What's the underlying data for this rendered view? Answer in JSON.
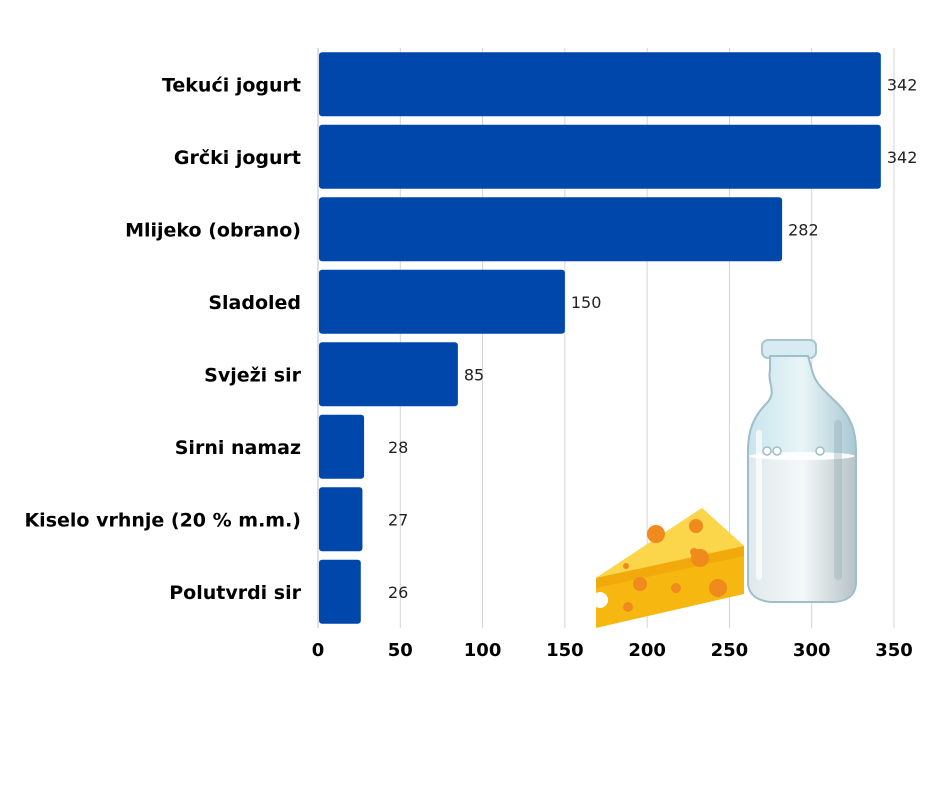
{
  "chart_data": {
    "type": "bar",
    "orientation": "horizontal",
    "categories": [
      "Tekući jogurt",
      "Grčki jogurt",
      "Mlijeko (obrano)",
      "Sladoled",
      "Svježi sir",
      "Sirni namaz",
      "Kiselo vrhnje (20 % m.m.)",
      "Polutvrdi sir"
    ],
    "values": [
      342,
      342,
      282,
      150,
      85,
      28,
      27,
      26
    ],
    "value_labels": [
      "342",
      "342",
      "282",
      "150",
      "85",
      "28",
      "27",
      "26"
    ],
    "xlim": [
      0,
      350
    ],
    "xticks": [
      0,
      50,
      100,
      150,
      200,
      250,
      300,
      350
    ],
    "grid": "vertical",
    "bar_color": "#0047ab",
    "illustrations": [
      "cheese-wedge",
      "milk-bottle"
    ]
  }
}
